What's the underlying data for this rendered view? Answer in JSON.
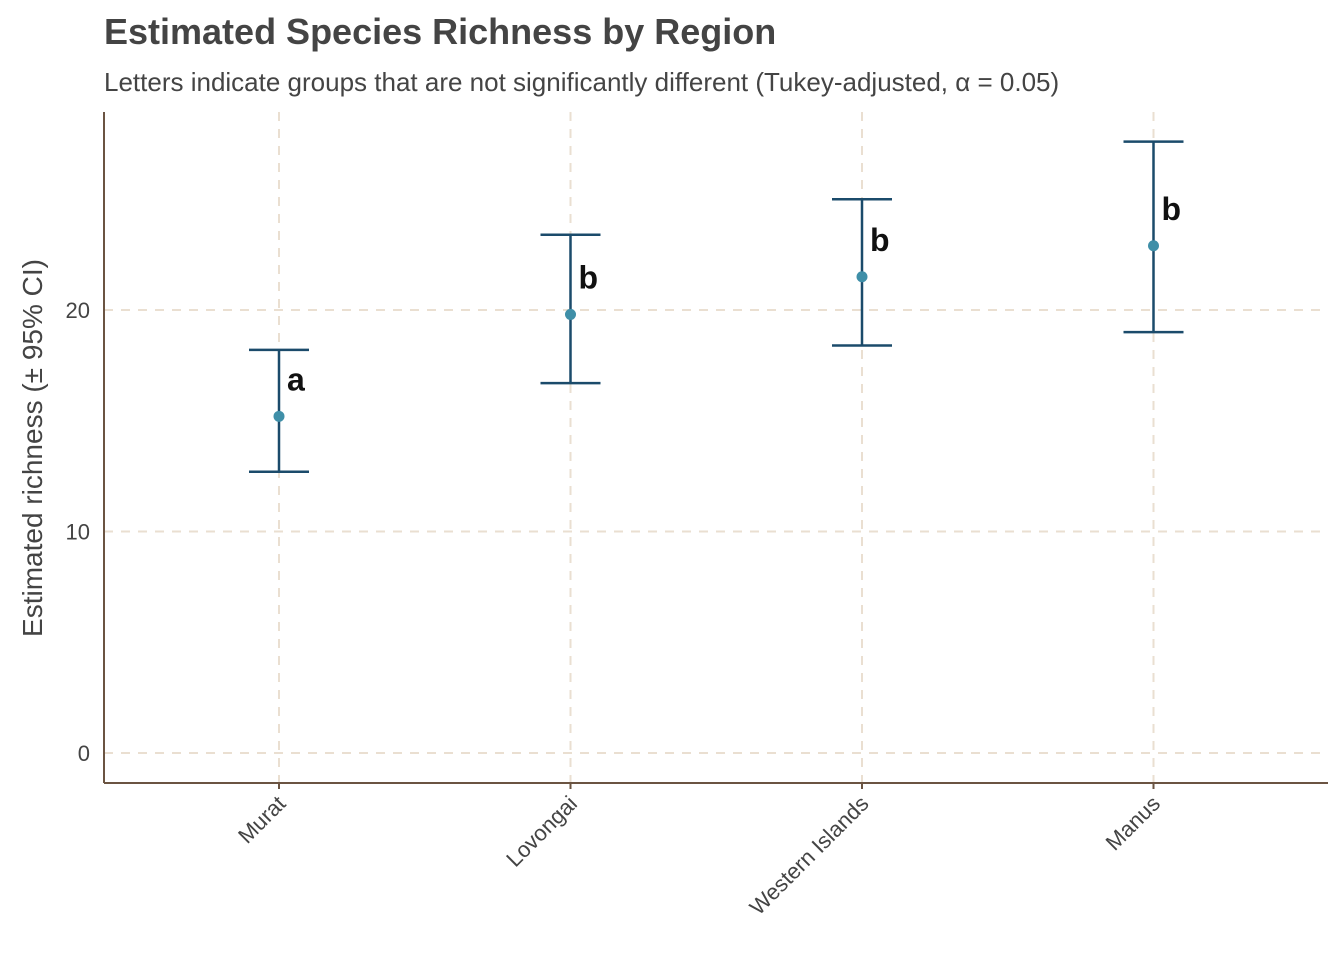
{
  "chart_data": {
    "type": "scatter",
    "title": "Estimated Species Richness by Region",
    "subtitle": "Letters indicate groups that are not significantly different (Tukey-adjusted, α = 0.05)",
    "xlabel": "",
    "ylabel": "Estimated richness (± 95% CI)",
    "categories": [
      "Murat",
      "Lovongai",
      "Western Islands",
      "Manus"
    ],
    "values": [
      15.2,
      19.8,
      21.5,
      22.9
    ],
    "lower": [
      12.7,
      16.7,
      18.4,
      19.0
    ],
    "upper": [
      18.2,
      23.4,
      25.0,
      27.6
    ],
    "letters": [
      "a",
      "b",
      "b",
      "b"
    ],
    "ylim": [
      -1.4,
      29.0
    ],
    "yticks": [
      0,
      10,
      20
    ],
    "grid": true,
    "legend": "none"
  },
  "colors": {
    "errorbar": "#1b4b6b",
    "point": "#3f8fa8",
    "grid": "#eadfd1",
    "axis": "#6b5442"
  }
}
